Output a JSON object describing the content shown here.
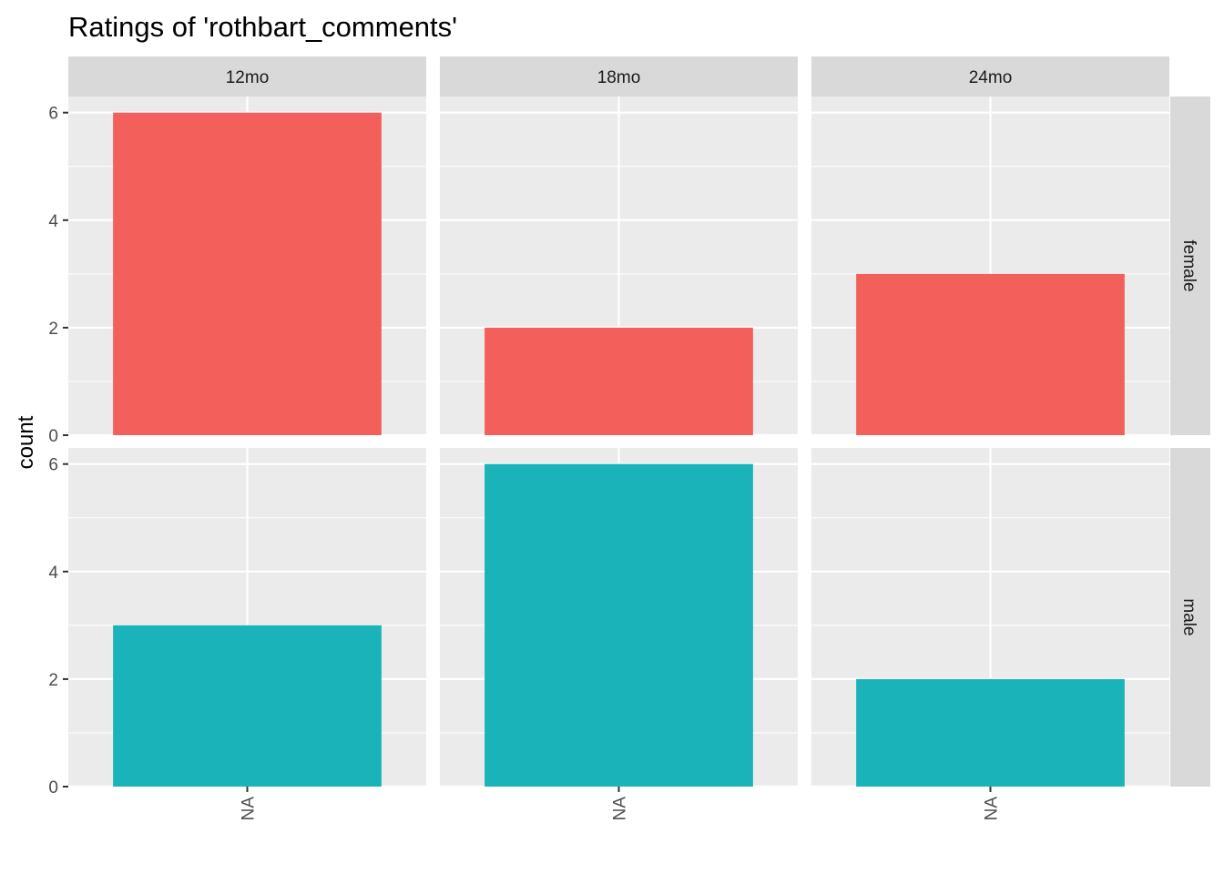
{
  "chart_data": {
    "type": "bar",
    "title": "Ratings of 'rothbart_comments'",
    "xlabel": "",
    "ylabel": "count",
    "ylim": [
      0,
      6.3
    ],
    "y_ticks": [
      0,
      2,
      4,
      6
    ],
    "categories": [
      "NA"
    ],
    "col_facets": [
      "12mo",
      "18mo",
      "24mo"
    ],
    "row_facets": [
      "female",
      "male"
    ],
    "fill_colors": {
      "female": "#F3605B",
      "male": "#1AB3B9"
    },
    "panels": [
      {
        "col": "12mo",
        "row": "female",
        "values": [
          6
        ]
      },
      {
        "col": "18mo",
        "row": "female",
        "values": [
          2
        ]
      },
      {
        "col": "24mo",
        "row": "female",
        "values": [
          3
        ]
      },
      {
        "col": "12mo",
        "row": "male",
        "values": [
          3
        ]
      },
      {
        "col": "18mo",
        "row": "male",
        "values": [
          6
        ]
      },
      {
        "col": "24mo",
        "row": "male",
        "values": [
          2
        ]
      }
    ],
    "grid": true,
    "legend": "none"
  }
}
